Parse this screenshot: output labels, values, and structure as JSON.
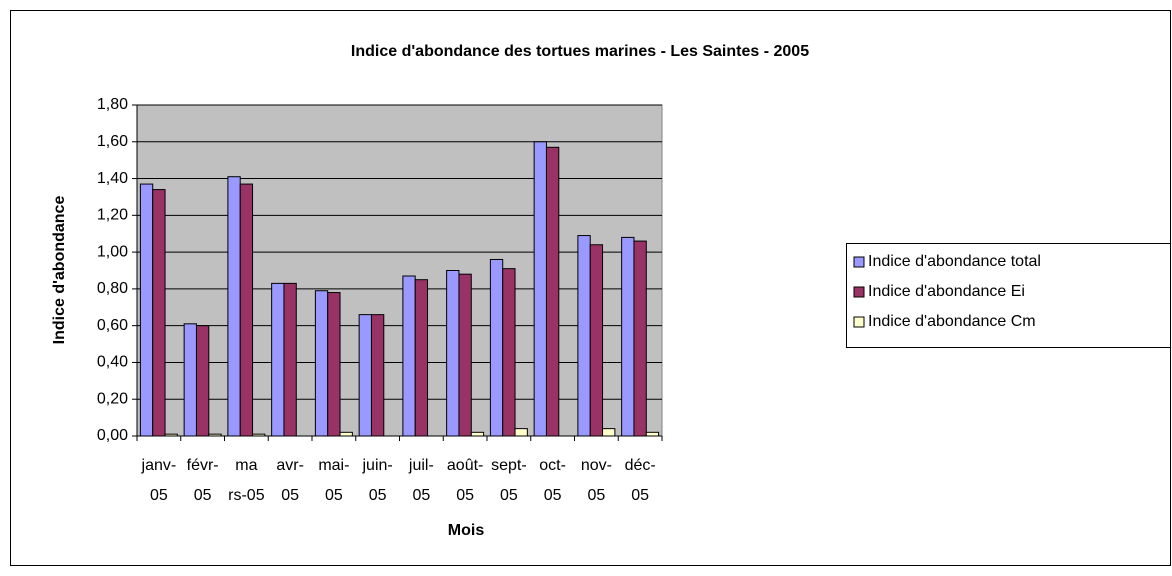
{
  "chart_data": {
    "type": "bar",
    "title": "Indice d'abondance des tortues marines - Les Saintes - 2005",
    "x_label": "Mois",
    "y_label": "Indice d'abondance",
    "categories": [
      [
        "janv-",
        "05"
      ],
      [
        "févr-",
        "05"
      ],
      [
        "ma",
        "rs-05"
      ],
      [
        "avr-",
        "05"
      ],
      [
        "mai-",
        "05"
      ],
      [
        "juin-",
        "05"
      ],
      [
        "juil-",
        "05"
      ],
      [
        "août-",
        "05"
      ],
      [
        "sept-",
        "05"
      ],
      [
        "oct-",
        "05"
      ],
      [
        "nov-",
        "05"
      ],
      [
        "déc-",
        "05"
      ]
    ],
    "series": [
      {
        "name": "Indice d'abondance total",
        "color": "#9999ff",
        "values": [
          1.37,
          0.61,
          1.41,
          0.83,
          0.79,
          0.66,
          0.87,
          0.9,
          0.96,
          1.6,
          1.09,
          1.08
        ]
      },
      {
        "name": "Indice d'abondance Ei",
        "color": "#993366",
        "values": [
          1.34,
          0.6,
          1.37,
          0.83,
          0.78,
          0.66,
          0.85,
          0.88,
          0.91,
          1.57,
          1.04,
          1.06
        ]
      },
      {
        "name": "Indice d'abondance Cm",
        "color": "#ffffcc",
        "values": [
          0.01,
          0.01,
          0.01,
          0,
          0.02,
          0,
          0,
          0.02,
          0.04,
          0,
          0.04,
          0.02
        ]
      }
    ],
    "ylim": [
      0,
      1.8
    ],
    "yticks": [
      {
        "value": 0,
        "label": "0,00"
      },
      {
        "value": 0.2,
        "label": "0,20"
      },
      {
        "value": 0.4,
        "label": "0,40"
      },
      {
        "value": 0.6,
        "label": "0,60"
      },
      {
        "value": 0.8,
        "label": "0,80"
      },
      {
        "value": 1.0,
        "label": "1,00"
      },
      {
        "value": 1.2,
        "label": "1,20"
      },
      {
        "value": 1.4,
        "label": "1,40"
      },
      {
        "value": 1.6,
        "label": "1,60"
      },
      {
        "value": 1.8,
        "label": "1,80"
      }
    ],
    "grid": true,
    "legend": "right",
    "plot_background": "#c0c0c0"
  }
}
